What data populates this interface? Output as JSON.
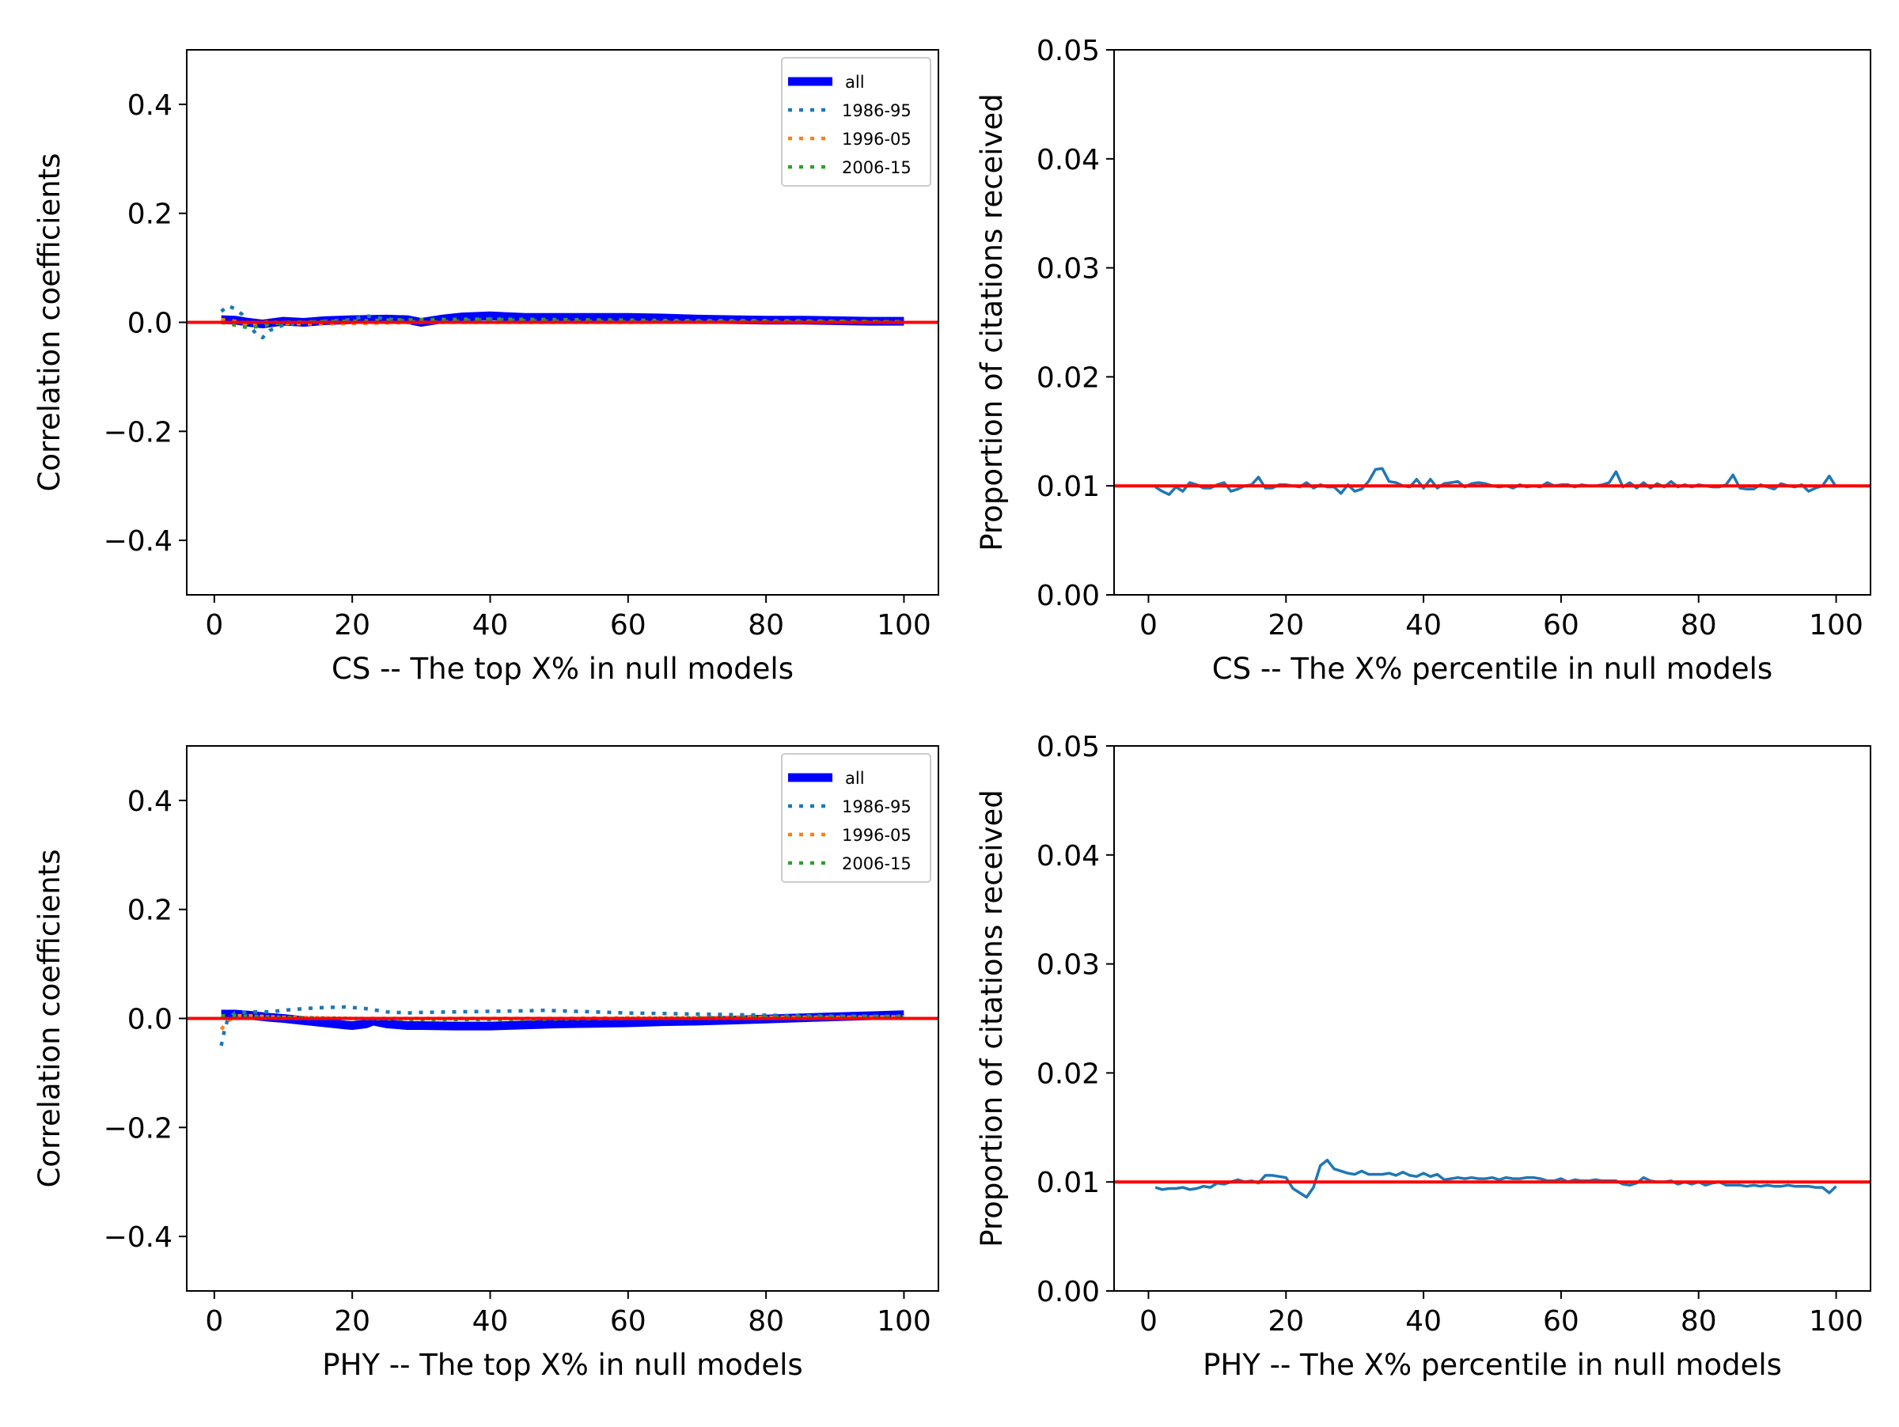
{
  "chart_data": [
    {
      "type": "line",
      "xlabel": "CS -- The top X% in null models",
      "ylabel": "Correlation coefficients",
      "xlim": [
        -4,
        105
      ],
      "ylim": [
        -0.5,
        0.5
      ],
      "xticks": [
        0,
        20,
        40,
        60,
        80,
        100
      ],
      "xtick_labels": [
        "0",
        "20",
        "40",
        "60",
        "80",
        "100"
      ],
      "yticks": [
        -0.4,
        -0.2,
        0.0,
        0.2,
        0.4
      ],
      "ytick_labels": [
        "−0.4",
        "−0.2",
        "0.0",
        "0.2",
        "0.4"
      ],
      "legend_position": "upper right",
      "reference_line": {
        "y": 0.0,
        "color": "#ff0000"
      },
      "series": [
        {
          "name": "all",
          "style": "solid-thick",
          "color": "#0000ff",
          "x": [
            1,
            3,
            5,
            7,
            10,
            13,
            16,
            20,
            25,
            28,
            30,
            33,
            36,
            40,
            45,
            50,
            55,
            60,
            65,
            70,
            75,
            80,
            85,
            90,
            95,
            100
          ],
          "y": [
            0.005,
            0.004,
            0.0,
            -0.003,
            0.002,
            0.0,
            0.003,
            0.005,
            0.006,
            0.005,
            0.0,
            0.006,
            0.01,
            0.012,
            0.009,
            0.009,
            0.009,
            0.009,
            0.008,
            0.006,
            0.005,
            0.004,
            0.004,
            0.003,
            0.002,
            0.002
          ]
        },
        {
          "name": "1986-95",
          "style": "dotted",
          "color": "#1f77b4",
          "x": [
            1,
            2,
            3,
            4,
            5,
            6,
            7,
            8,
            10,
            13,
            16,
            20,
            22,
            25,
            30,
            35,
            40,
            45,
            50,
            55,
            60,
            65,
            70,
            80,
            90,
            100
          ],
          "y": [
            0.02,
            0.03,
            0.025,
            0.015,
            -0.005,
            -0.02,
            -0.028,
            -0.015,
            -0.005,
            0.0,
            0.002,
            0.005,
            0.012,
            0.006,
            0.0,
            0.002,
            0.006,
            0.003,
            0.002,
            0.002,
            0.001,
            0.001,
            0.001,
            0.001,
            0.001,
            0.0
          ]
        },
        {
          "name": "1996-05",
          "style": "dotted",
          "color": "#ff7f0e",
          "x": [
            1,
            3,
            5,
            8,
            10,
            15,
            20,
            25,
            30,
            40,
            50,
            60,
            70,
            80,
            90,
            100
          ],
          "y": [
            0.005,
            0.002,
            -0.008,
            0.002,
            -0.002,
            -0.003,
            -0.002,
            -0.001,
            0.0,
            0.0,
            0.0,
            0.0,
            0.001,
            0.001,
            0.001,
            0.001
          ]
        },
        {
          "name": "2006-15",
          "style": "dotted",
          "color": "#2ca02c",
          "x": [
            1,
            3,
            5,
            8,
            10,
            15,
            20,
            25,
            30,
            40,
            50,
            60,
            70,
            80,
            90,
            100
          ],
          "y": [
            0.0,
            -0.005,
            -0.01,
            -0.004,
            0.0,
            0.001,
            0.002,
            0.004,
            0.005,
            0.006,
            0.005,
            0.004,
            0.003,
            0.003,
            0.002,
            0.001
          ]
        }
      ]
    },
    {
      "type": "line",
      "xlabel": "CS -- The X% percentile in null models",
      "ylabel": "Proportion of citations received",
      "xlim": [
        -5,
        105
      ],
      "ylim": [
        0.0,
        0.05
      ],
      "xticks": [
        0,
        20,
        40,
        60,
        80,
        100
      ],
      "xtick_labels": [
        "0",
        "20",
        "40",
        "60",
        "80",
        "100"
      ],
      "yticks": [
        0.0,
        0.01,
        0.02,
        0.03,
        0.04,
        0.05
      ],
      "ytick_labels": [
        "0.00",
        "0.01",
        "0.02",
        "0.03",
        "0.04",
        "0.05"
      ],
      "reference_line": {
        "y": 0.01,
        "color": "#ff0000"
      },
      "series": [
        {
          "name": "proportion",
          "style": "solid",
          "color": "#1f77b4",
          "x": [
            1,
            2,
            3,
            4,
            5,
            6,
            7,
            8,
            9,
            10,
            11,
            12,
            13,
            14,
            15,
            16,
            17,
            18,
            19,
            20,
            21,
            22,
            23,
            24,
            25,
            26,
            27,
            28,
            29,
            30,
            31,
            32,
            33,
            34,
            35,
            36,
            37,
            38,
            39,
            40,
            41,
            42,
            43,
            44,
            45,
            46,
            47,
            48,
            49,
            50,
            51,
            52,
            53,
            54,
            55,
            56,
            57,
            58,
            59,
            60,
            61,
            62,
            63,
            64,
            65,
            66,
            67,
            68,
            69,
            70,
            71,
            72,
            73,
            74,
            75,
            76,
            77,
            78,
            79,
            80,
            81,
            82,
            83,
            84,
            85,
            86,
            87,
            88,
            89,
            90,
            91,
            92,
            93,
            94,
            95,
            96,
            97,
            98,
            99,
            100
          ],
          "y": [
            0.0099,
            0.0095,
            0.0092,
            0.0099,
            0.0095,
            0.0103,
            0.0101,
            0.0098,
            0.0098,
            0.0101,
            0.0103,
            0.0095,
            0.0097,
            0.01,
            0.0101,
            0.0108,
            0.0098,
            0.0098,
            0.0101,
            0.0101,
            0.01,
            0.0099,
            0.0103,
            0.0098,
            0.0101,
            0.0099,
            0.0099,
            0.0093,
            0.0101,
            0.0095,
            0.0097,
            0.0104,
            0.0115,
            0.0116,
            0.0104,
            0.0103,
            0.01,
            0.0099,
            0.0106,
            0.0098,
            0.0106,
            0.0098,
            0.0102,
            0.0103,
            0.0104,
            0.0099,
            0.0102,
            0.0103,
            0.0102,
            0.01,
            0.0099,
            0.01,
            0.0098,
            0.0101,
            0.0099,
            0.01,
            0.0099,
            0.0103,
            0.01,
            0.0101,
            0.0101,
            0.0099,
            0.0101,
            0.01,
            0.01,
            0.0101,
            0.0103,
            0.0113,
            0.0099,
            0.0103,
            0.0098,
            0.0103,
            0.0098,
            0.0102,
            0.0099,
            0.0104,
            0.0099,
            0.0101,
            0.0099,
            0.0101,
            0.01,
            0.0099,
            0.0099,
            0.0101,
            0.011,
            0.0098,
            0.0097,
            0.0097,
            0.0101,
            0.0099,
            0.0097,
            0.0102,
            0.01,
            0.0099,
            0.0101,
            0.0095,
            0.0098,
            0.01,
            0.0109,
            0.0099
          ]
        }
      ]
    },
    {
      "type": "line",
      "xlabel": "PHY -- The top X% in null models",
      "ylabel": "Correlation coefficients",
      "xlim": [
        -4,
        105
      ],
      "ylim": [
        -0.5,
        0.5
      ],
      "xticks": [
        0,
        20,
        40,
        60,
        80,
        100
      ],
      "xtick_labels": [
        "0",
        "20",
        "40",
        "60",
        "80",
        "100"
      ],
      "yticks": [
        -0.4,
        -0.2,
        0.0,
        0.2,
        0.4
      ],
      "ytick_labels": [
        "−0.4",
        "−0.2",
        "0.0",
        "0.2",
        "0.4"
      ],
      "legend_position": "upper right",
      "reference_line": {
        "y": 0.0,
        "color": "#ff0000"
      },
      "series": [
        {
          "name": "all",
          "style": "solid-thick",
          "color": "#0000ff",
          "x": [
            1,
            3,
            5,
            8,
            10,
            13,
            16,
            19,
            20,
            22,
            23,
            25,
            28,
            30,
            35,
            40,
            45,
            50,
            55,
            60,
            65,
            70,
            75,
            80,
            85,
            90,
            95,
            100
          ],
          "y": [
            0.008,
            0.008,
            0.006,
            0.002,
            0.0,
            -0.004,
            -0.008,
            -0.012,
            -0.013,
            -0.01,
            -0.005,
            -0.01,
            -0.013,
            -0.013,
            -0.014,
            -0.014,
            -0.012,
            -0.01,
            -0.009,
            -0.008,
            -0.006,
            -0.005,
            -0.003,
            -0.001,
            0.001,
            0.003,
            0.005,
            0.007
          ]
        },
        {
          "name": "1986-95",
          "style": "dotted",
          "color": "#1f77b4",
          "x": [
            1,
            1.5,
            2,
            3,
            5,
            8,
            10,
            13,
            16,
            19,
            22,
            25,
            28,
            30,
            35,
            40,
            45,
            48,
            50,
            55,
            60,
            65,
            70,
            75,
            80,
            85,
            90,
            95,
            100
          ],
          "y": [
            -0.05,
            -0.02,
            0.0,
            0.01,
            0.012,
            0.012,
            0.015,
            0.018,
            0.02,
            0.021,
            0.018,
            0.012,
            0.01,
            0.011,
            0.012,
            0.013,
            0.014,
            0.015,
            0.014,
            0.012,
            0.01,
            0.009,
            0.008,
            0.007,
            0.006,
            0.005,
            0.004,
            0.004,
            0.003
          ]
        },
        {
          "name": "1996-05",
          "style": "dotted",
          "color": "#ff7f0e",
          "x": [
            1,
            2,
            3,
            5,
            8,
            10,
            15,
            20,
            30,
            40,
            50,
            60,
            70,
            80,
            90,
            100
          ],
          "y": [
            -0.02,
            -0.005,
            0.005,
            0.005,
            0.003,
            0.002,
            0.001,
            0.0,
            0.0,
            0.0,
            0.0,
            0.001,
            0.001,
            0.002,
            0.002,
            0.003
          ]
        },
        {
          "name": "2006-15",
          "style": "dotted",
          "color": "#2ca02c",
          "x": [
            1,
            3,
            5,
            8,
            10,
            15,
            20,
            30,
            40,
            50,
            60,
            70,
            80,
            90,
            100
          ],
          "y": [
            0.005,
            0.005,
            0.004,
            0.003,
            0.002,
            0.001,
            0.0,
            -0.002,
            -0.002,
            -0.001,
            0.0,
            0.001,
            0.002,
            0.003,
            0.004
          ]
        }
      ]
    },
    {
      "type": "line",
      "xlabel": "PHY -- The X% percentile in null models",
      "ylabel": "Proportion of citations received",
      "xlim": [
        -5,
        105
      ],
      "ylim": [
        0.0,
        0.05
      ],
      "xticks": [
        0,
        20,
        40,
        60,
        80,
        100
      ],
      "xtick_labels": [
        "0",
        "20",
        "40",
        "60",
        "80",
        "100"
      ],
      "yticks": [
        0.0,
        0.01,
        0.02,
        0.03,
        0.04,
        0.05
      ],
      "ytick_labels": [
        "0.00",
        "0.01",
        "0.02",
        "0.03",
        "0.04",
        "0.05"
      ],
      "reference_line": {
        "y": 0.01,
        "color": "#ff0000"
      },
      "series": [
        {
          "name": "proportion",
          "style": "solid",
          "color": "#1f77b4",
          "x": [
            1,
            2,
            3,
            4,
            5,
            6,
            7,
            8,
            9,
            10,
            11,
            12,
            13,
            14,
            15,
            16,
            17,
            18,
            19,
            20,
            21,
            22,
            23,
            24,
            25,
            26,
            27,
            28,
            29,
            30,
            31,
            32,
            33,
            34,
            35,
            36,
            37,
            38,
            39,
            40,
            41,
            42,
            43,
            44,
            45,
            46,
            47,
            48,
            49,
            50,
            51,
            52,
            53,
            54,
            55,
            56,
            57,
            58,
            59,
            60,
            61,
            62,
            63,
            64,
            65,
            66,
            67,
            68,
            69,
            70,
            71,
            72,
            73,
            74,
            75,
            76,
            77,
            78,
            79,
            80,
            81,
            82,
            83,
            84,
            85,
            86,
            87,
            88,
            89,
            90,
            91,
            92,
            93,
            94,
            95,
            96,
            97,
            98,
            99,
            100
          ],
          "y": [
            0.0095,
            0.0093,
            0.0094,
            0.0094,
            0.0095,
            0.0093,
            0.0094,
            0.0096,
            0.0095,
            0.0099,
            0.0098,
            0.01,
            0.0102,
            0.01,
            0.0101,
            0.0099,
            0.0106,
            0.0106,
            0.0105,
            0.0104,
            0.0094,
            0.009,
            0.0086,
            0.0095,
            0.0115,
            0.012,
            0.0112,
            0.011,
            0.0108,
            0.0107,
            0.011,
            0.0107,
            0.0107,
            0.0107,
            0.0108,
            0.0106,
            0.0109,
            0.0106,
            0.0105,
            0.0108,
            0.0105,
            0.0107,
            0.0102,
            0.0103,
            0.0104,
            0.0103,
            0.0104,
            0.0103,
            0.0103,
            0.0104,
            0.0102,
            0.0104,
            0.0103,
            0.0103,
            0.0104,
            0.0104,
            0.0103,
            0.0101,
            0.0101,
            0.0103,
            0.01,
            0.0102,
            0.0101,
            0.0101,
            0.0102,
            0.0101,
            0.0101,
            0.0101,
            0.0098,
            0.0097,
            0.0099,
            0.0104,
            0.0101,
            0.01,
            0.01,
            0.0101,
            0.0098,
            0.01,
            0.0098,
            0.01,
            0.0097,
            0.0099,
            0.01,
            0.0097,
            0.0097,
            0.0097,
            0.0096,
            0.0097,
            0.0096,
            0.0097,
            0.0096,
            0.0096,
            0.0097,
            0.0096,
            0.0096,
            0.0096,
            0.0095,
            0.0095,
            0.009,
            0.0096
          ]
        }
      ]
    }
  ]
}
